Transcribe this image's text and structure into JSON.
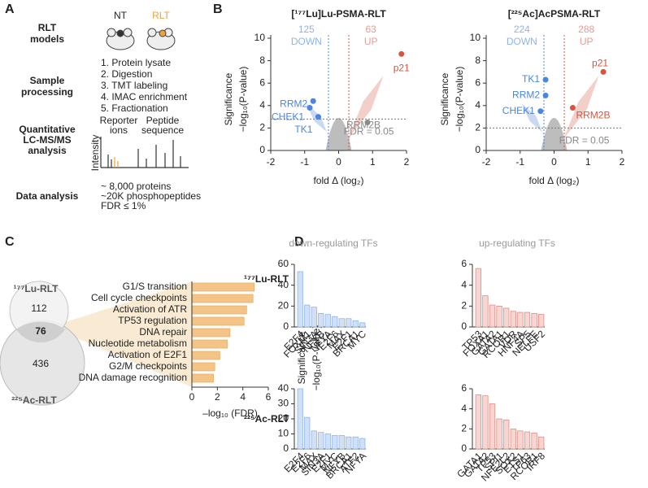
{
  "panel_labels": [
    "A",
    "B",
    "C",
    "D"
  ],
  "workflow": {
    "steps": [
      [
        "RLT",
        "models"
      ],
      [
        "Sample",
        "processing"
      ],
      [
        "Quantitative",
        "LC-MS/MS",
        "analysis"
      ],
      [
        "Data analysis"
      ]
    ],
    "groups": [
      "NT",
      "RLT"
    ],
    "processing": [
      "1. Protein lysate",
      "2. Digestion",
      "3. TMT labeling",
      "4. IMAC enrichment",
      "5. Fractionation"
    ],
    "spectrum": {
      "reporter": [
        "Reporter",
        "ions"
      ],
      "peptide": [
        "Peptide",
        "sequence"
      ],
      "axis": "Intensity"
    },
    "summary": [
      "~ 8,000 proteins",
      "~20K phosphopeptides",
      "FDR ≤ 1%"
    ]
  },
  "venn": {
    "sets": [
      "¹⁷⁷Lu-RLT",
      "²²⁵Ac-RLT"
    ],
    "counts": [
      112,
      76,
      436
    ]
  },
  "panel_d": {
    "column_titles": [
      "down-regulating TFs",
      "up-regulating TFs"
    ],
    "row_titles": [
      "¹⁷⁷Lu-RLT",
      "²²⁵Ac-RLT"
    ],
    "y_label": [
      "Significance",
      "−log₁₀(P-value)"
    ]
  },
  "chart_data": [
    {
      "type": "scatter",
      "title": "[¹⁷⁷Lu]Lu-PSMA-RLT",
      "x_label": "fold Δ (log₂)",
      "y_label": [
        "Significance",
        "−log₁₀(P-value)"
      ],
      "xlim": [
        -2,
        2
      ],
      "xticks": [
        -2,
        -1,
        0,
        1,
        2
      ],
      "ylim": [
        0,
        10
      ],
      "yticks": [
        0,
        2,
        4,
        6,
        8,
        10
      ],
      "thresholds": {
        "x": [
          -0.3,
          0.3
        ],
        "y": 2.8
      },
      "down": {
        "count": 125,
        "label": "DOWN",
        "color": "#8fb4ea"
      },
      "up": {
        "count": 63,
        "label": "UP",
        "color": "#e89a90"
      },
      "fdr_label": "FDR = 0.05",
      "points": [
        {
          "label": "p21",
          "x": 1.85,
          "y": 8.6,
          "color": "#d9543f"
        },
        {
          "label": "RRM2",
          "x": -0.75,
          "y": 4.4,
          "color": "#4a86e0"
        },
        {
          "label": "CHEK1",
          "x": -0.85,
          "y": 3.8,
          "color": "#4a86e0"
        },
        {
          "label": "TK1",
          "x": -0.6,
          "y": 3.0,
          "color": "#4a86e0"
        },
        {
          "label": "RRM2B",
          "x": 0.85,
          "y": 2.5,
          "color": "#8a8a8a"
        }
      ]
    },
    {
      "type": "scatter",
      "title": "[²²⁵Ac]AcPSMA-RLT",
      "x_label": "fold Δ (log₂)",
      "y_label": [
        "Significance",
        "−log₁₀(P-value)"
      ],
      "xlim": [
        -2,
        2
      ],
      "xticks": [
        -2,
        -1,
        0,
        1,
        2
      ],
      "ylim": [
        0,
        10
      ],
      "yticks": [
        0,
        2,
        4,
        6,
        8,
        10
      ],
      "thresholds": {
        "x": [
          -0.3,
          0.3
        ],
        "y": 2.0
      },
      "down": {
        "count": 224,
        "label": "DOWN",
        "color": "#8fb4ea"
      },
      "up": {
        "count": 288,
        "label": "UP",
        "color": "#e89a90"
      },
      "fdr_label": "FDR = 0.05",
      "points": [
        {
          "label": "p21",
          "x": 1.45,
          "y": 7.0,
          "color": "#d9543f"
        },
        {
          "label": "TK1",
          "x": -0.25,
          "y": 6.3,
          "color": "#4a86e0"
        },
        {
          "label": "RRM2",
          "x": -0.25,
          "y": 4.9,
          "color": "#4a86e0"
        },
        {
          "label": "CHEK1",
          "x": -0.4,
          "y": 3.5,
          "color": "#4a86e0"
        },
        {
          "label": "RRM2B",
          "x": 0.55,
          "y": 3.8,
          "color": "#d9543f"
        }
      ]
    },
    {
      "type": "barh",
      "x_label": "–log₁₀ (FDR)",
      "color": "#f3c486",
      "stroke": "#e3a657",
      "categories": [
        "G1/S transition",
        "Cell cycle checkpoints",
        "Activation of ATR",
        "TP53 regulation",
        "DNA repair",
        "Nucleotide metabolism",
        "Activation of E2F1",
        "G2/M checkpoints",
        "DNA damage recognition"
      ],
      "values": [
        4.9,
        4.8,
        4.3,
        4.1,
        3.0,
        2.8,
        2.2,
        1.8,
        1.7
      ],
      "xlim": [
        0,
        6
      ],
      "xticks": [
        0,
        2,
        4,
        6
      ]
    },
    {
      "type": "bar",
      "color": "#cfe0f8",
      "stroke": "#86aee6",
      "categories": [
        "E2F4",
        "FOXM1",
        "SIN3A",
        "NFYB",
        "NFYA",
        "E2F6",
        "MAX",
        "E2F1",
        "BRCA1",
        "MYC"
      ],
      "values": [
        53,
        21,
        19,
        13,
        12,
        10,
        8,
        8,
        6,
        4
      ],
      "ylim": [
        0,
        60
      ],
      "yticks": [
        0,
        20,
        40,
        60
      ]
    },
    {
      "type": "bar",
      "color": "#f8d5d0",
      "stroke": "#d98479",
      "categories": [
        "TP53",
        "FOXA1",
        "GATA2",
        "GATA1",
        "RCOR1",
        "VDR",
        "HNF4A",
        "SP5",
        "NELFE",
        "USF2"
      ],
      "values": [
        5.6,
        3.0,
        2.1,
        2.0,
        1.8,
        1.5,
        1.4,
        1.4,
        1.3,
        1.2
      ],
      "ylim": [
        0,
        6
      ],
      "yticks": [
        0,
        2,
        4,
        6
      ]
    },
    {
      "type": "bar",
      "color": "#cfe0f8",
      "stroke": "#86aee6",
      "categories": [
        "E2F4",
        "E2F6",
        "MAX",
        "SIN3A",
        "E2F1",
        "MYC",
        "NFYB",
        "BRCA1",
        "ATF2",
        "NFYA"
      ],
      "values": [
        40,
        21,
        12,
        11,
        10,
        9,
        9,
        8,
        8,
        7
      ],
      "ylim": [
        0,
        40
      ],
      "yticks": [
        0,
        10,
        20,
        30,
        40
      ]
    },
    {
      "type": "bar",
      "color": "#f8d5d0",
      "stroke": "#d98479",
      "categories": [
        "GATA1",
        "GATA2",
        "TP53",
        "SPI1",
        "NFE2L2",
        "SOX2",
        "ETS1",
        "TP63",
        "RCOR1",
        "IRF8"
      ],
      "values": [
        5.4,
        5.3,
        4.5,
        3.0,
        2.9,
        2.0,
        1.8,
        1.7,
        1.6,
        1.2
      ],
      "ylim": [
        0,
        6
      ],
      "yticks": [
        0,
        2,
        4,
        6
      ]
    }
  ]
}
